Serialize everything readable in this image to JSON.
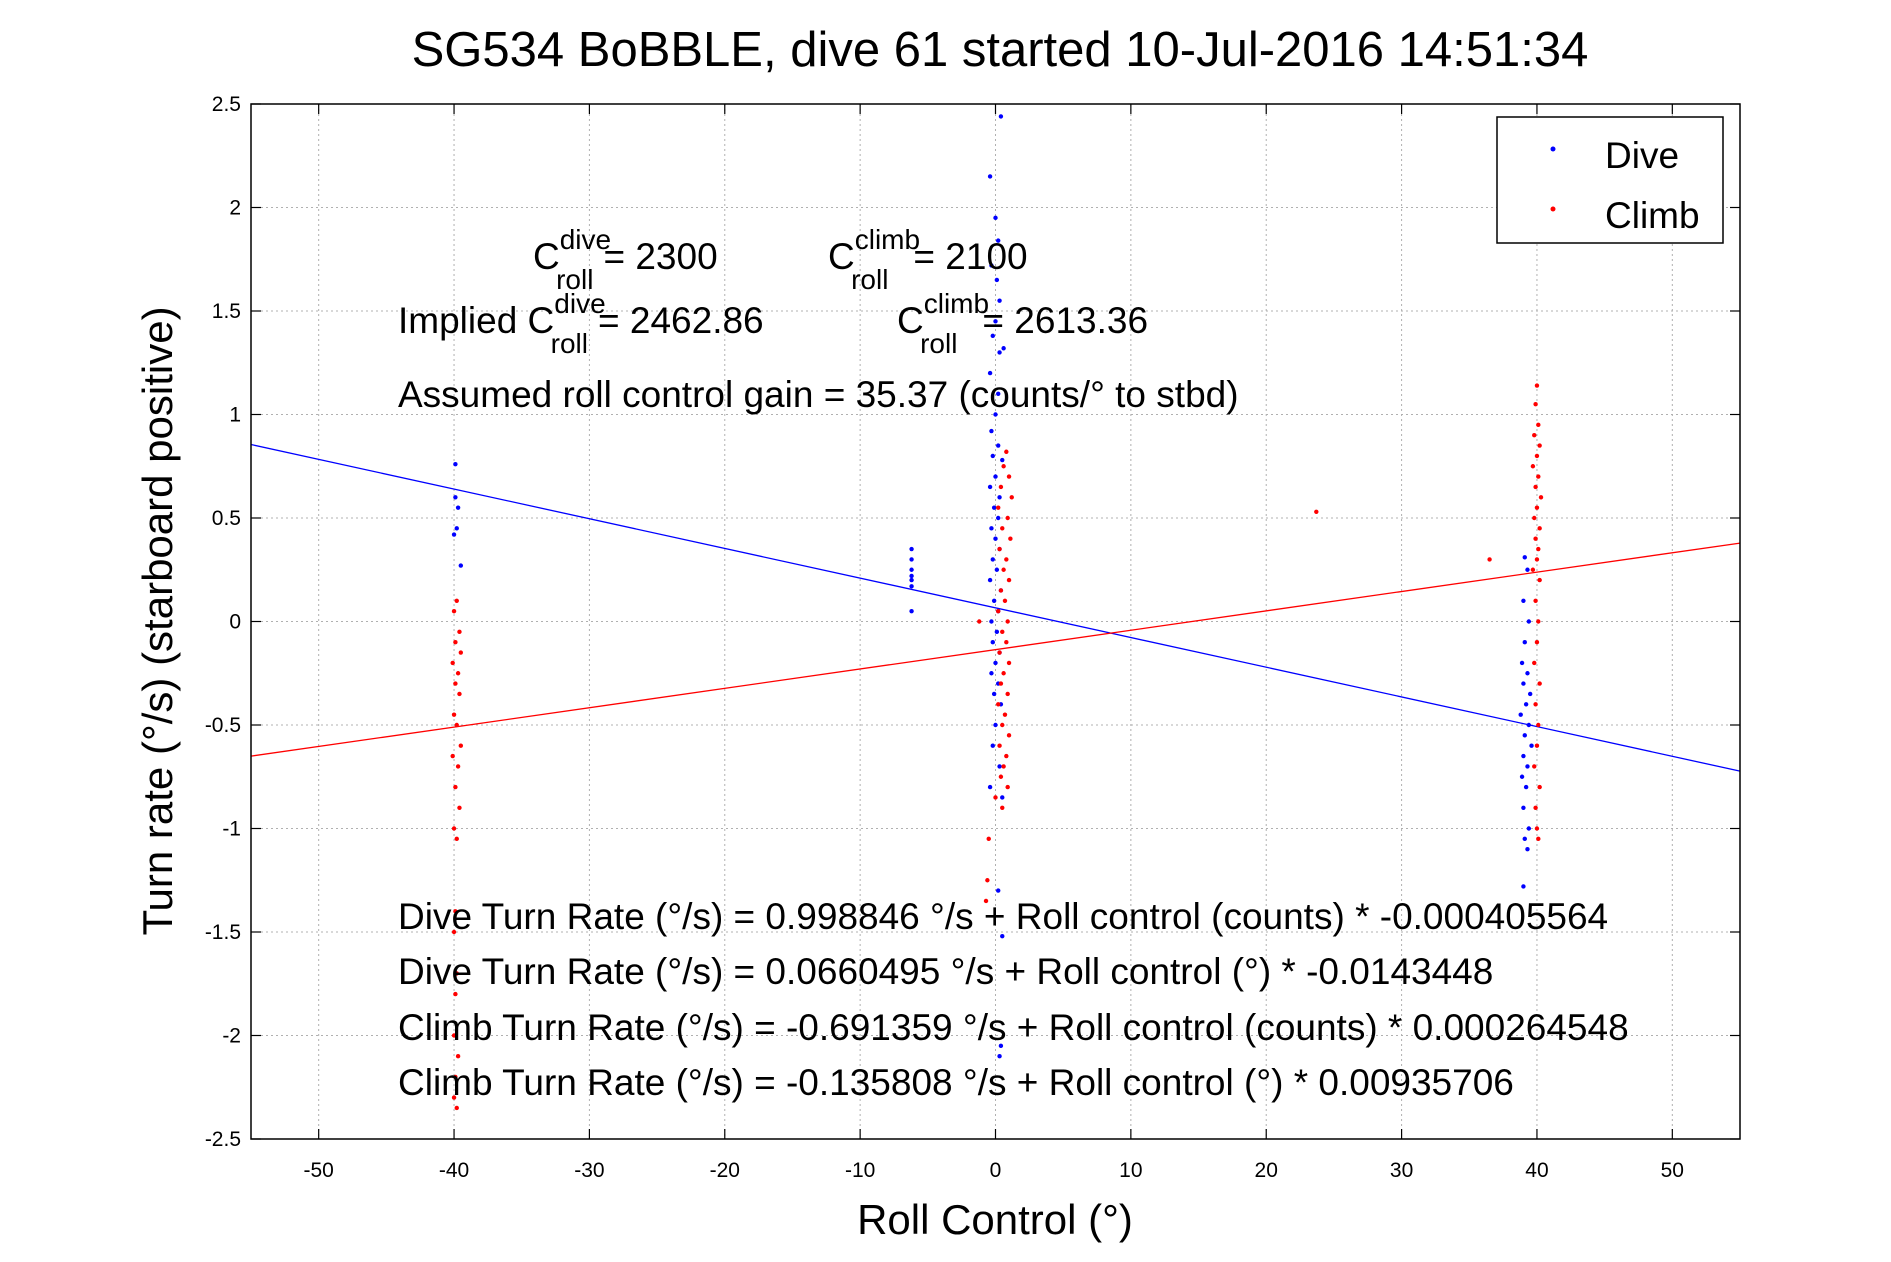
{
  "chart_data": {
    "type": "scatter",
    "title": "SG534 BoBBLE, dive 61 started 10-Jul-2016 14:51:34",
    "xlabel": "Roll Control (°)",
    "ylabel": "Turn rate (°/s) (starboard positive)",
    "xlim": [
      -55,
      55
    ],
    "ylim": [
      -2.5,
      2.5
    ],
    "x_ticks": [
      "-50",
      "-40",
      "-30",
      "-20",
      "-10",
      "0",
      "10",
      "20",
      "30",
      "40",
      "50"
    ],
    "y_ticks": [
      "2.5",
      "2",
      "1.5",
      "1",
      "0.5",
      "0",
      "-0.5",
      "-1",
      "-1.5",
      "-2",
      "-2.5"
    ],
    "grid": true,
    "legend_position": "top-right",
    "series": [
      {
        "name": "Dive",
        "color": "#0000ff",
        "points": [
          [
            -39.9,
            0.76
          ],
          [
            -39.9,
            0.6
          ],
          [
            -39.7,
            0.55
          ],
          [
            -39.8,
            0.45
          ],
          [
            -40.0,
            0.42
          ],
          [
            -39.5,
            0.27
          ],
          [
            -6.2,
            0.35
          ],
          [
            -6.2,
            0.3
          ],
          [
            -6.2,
            0.25
          ],
          [
            -6.2,
            0.22
          ],
          [
            -6.2,
            0.2
          ],
          [
            -6.2,
            0.17
          ],
          [
            -6.2,
            0.05
          ],
          [
            0.4,
            2.44
          ],
          [
            -0.4,
            2.15
          ],
          [
            0.0,
            1.95
          ],
          [
            0.2,
            1.84
          ],
          [
            -0.3,
            1.72
          ],
          [
            0.1,
            1.65
          ],
          [
            0.3,
            1.55
          ],
          [
            0.0,
            1.45
          ],
          [
            -0.2,
            1.38
          ],
          [
            0.3,
            1.3
          ],
          [
            0.6,
            1.32
          ],
          [
            -0.4,
            1.2
          ],
          [
            0.2,
            1.1
          ],
          [
            0.0,
            1.0
          ],
          [
            -0.3,
            0.92
          ],
          [
            0.2,
            0.85
          ],
          [
            -0.2,
            0.8
          ],
          [
            0.5,
            0.78
          ],
          [
            0.0,
            0.7
          ],
          [
            -0.4,
            0.65
          ],
          [
            0.3,
            0.6
          ],
          [
            -0.1,
            0.55
          ],
          [
            0.2,
            0.5
          ],
          [
            -0.3,
            0.45
          ],
          [
            0.0,
            0.4
          ],
          [
            0.3,
            0.35
          ],
          [
            -0.2,
            0.3
          ],
          [
            0.1,
            0.25
          ],
          [
            -0.4,
            0.2
          ],
          [
            0.4,
            0.15
          ],
          [
            -0.1,
            0.1
          ],
          [
            0.2,
            0.05
          ],
          [
            -0.3,
            0.0
          ],
          [
            0.1,
            -0.05
          ],
          [
            -0.2,
            -0.1
          ],
          [
            0.3,
            -0.15
          ],
          [
            0.0,
            -0.2
          ],
          [
            -0.3,
            -0.25
          ],
          [
            0.2,
            -0.3
          ],
          [
            -0.1,
            -0.35
          ],
          [
            0.4,
            -0.4
          ],
          [
            0.0,
            -0.5
          ],
          [
            -0.2,
            -0.6
          ],
          [
            0.3,
            -0.7
          ],
          [
            -0.4,
            -0.8
          ],
          [
            0.5,
            -0.85
          ],
          [
            0.2,
            -1.3
          ],
          [
            0.5,
            -1.52
          ],
          [
            0.4,
            -2.05
          ],
          [
            0.3,
            -2.1
          ],
          [
            39.1,
            0.31
          ],
          [
            39.3,
            0.25
          ],
          [
            39.0,
            0.1
          ],
          [
            39.4,
            0.0
          ],
          [
            39.1,
            -0.1
          ],
          [
            38.9,
            -0.2
          ],
          [
            39.3,
            -0.25
          ],
          [
            39.0,
            -0.3
          ],
          [
            39.5,
            -0.35
          ],
          [
            39.2,
            -0.4
          ],
          [
            38.8,
            -0.45
          ],
          [
            39.4,
            -0.5
          ],
          [
            39.1,
            -0.55
          ],
          [
            39.6,
            -0.6
          ],
          [
            39.0,
            -0.65
          ],
          [
            39.3,
            -0.7
          ],
          [
            38.9,
            -0.75
          ],
          [
            39.2,
            -0.8
          ],
          [
            39.0,
            -0.9
          ],
          [
            39.4,
            -1.0
          ],
          [
            39.1,
            -1.05
          ],
          [
            39.3,
            -1.1
          ],
          [
            39.0,
            -1.28
          ]
        ],
        "fit_line": {
          "intercept": 0.0660495,
          "slope": -0.0143448
        }
      },
      {
        "name": "Climb",
        "color": "#ff0000",
        "points": [
          [
            -39.8,
            0.1
          ],
          [
            -40.0,
            0.05
          ],
          [
            -39.6,
            -0.05
          ],
          [
            -39.9,
            -0.1
          ],
          [
            -39.5,
            -0.15
          ],
          [
            -40.1,
            -0.2
          ],
          [
            -39.7,
            -0.25
          ],
          [
            -39.9,
            -0.3
          ],
          [
            -39.6,
            -0.35
          ],
          [
            -40.0,
            -0.45
          ],
          [
            -39.8,
            -0.5
          ],
          [
            -39.5,
            -0.6
          ],
          [
            -40.1,
            -0.65
          ],
          [
            -39.7,
            -0.7
          ],
          [
            -39.9,
            -0.8
          ],
          [
            -39.6,
            -0.9
          ],
          [
            -40.0,
            -1.0
          ],
          [
            -39.8,
            -1.05
          ],
          [
            -39.9,
            -1.4
          ],
          [
            -40.0,
            -1.5
          ],
          [
            -39.8,
            -1.7
          ],
          [
            -39.9,
            -1.8
          ],
          [
            -40.0,
            -2.0
          ],
          [
            -39.7,
            -2.1
          ],
          [
            -39.9,
            -2.2
          ],
          [
            -40.0,
            -2.3
          ],
          [
            -39.8,
            -2.35
          ],
          [
            -1.2,
            0.0
          ],
          [
            0.8,
            0.82
          ],
          [
            0.6,
            0.75
          ],
          [
            1.0,
            0.7
          ],
          [
            0.4,
            0.65
          ],
          [
            1.2,
            0.6
          ],
          [
            0.2,
            0.55
          ],
          [
            0.9,
            0.5
          ],
          [
            0.5,
            0.45
          ],
          [
            1.1,
            0.4
          ],
          [
            0.3,
            0.35
          ],
          [
            0.8,
            0.3
          ],
          [
            0.6,
            0.25
          ],
          [
            1.0,
            0.2
          ],
          [
            0.4,
            0.15
          ],
          [
            0.7,
            0.1
          ],
          [
            0.2,
            0.05
          ],
          [
            0.9,
            0.0
          ],
          [
            0.5,
            -0.05
          ],
          [
            0.8,
            -0.1
          ],
          [
            0.3,
            -0.15
          ],
          [
            1.0,
            -0.2
          ],
          [
            0.6,
            -0.25
          ],
          [
            0.4,
            -0.3
          ],
          [
            0.9,
            -0.35
          ],
          [
            0.2,
            -0.4
          ],
          [
            0.7,
            -0.45
          ],
          [
            0.5,
            -0.5
          ],
          [
            1.0,
            -0.55
          ],
          [
            0.3,
            -0.6
          ],
          [
            0.8,
            -0.65
          ],
          [
            0.6,
            -0.7
          ],
          [
            0.4,
            -0.75
          ],
          [
            0.9,
            -0.8
          ],
          [
            0.0,
            -0.85
          ],
          [
            0.5,
            -0.9
          ],
          [
            -0.5,
            -1.05
          ],
          [
            -0.6,
            -1.25
          ],
          [
            -0.7,
            -1.35
          ],
          [
            23.7,
            0.53
          ],
          [
            36.5,
            0.3
          ],
          [
            40.0,
            1.14
          ],
          [
            39.9,
            1.05
          ],
          [
            40.1,
            0.95
          ],
          [
            39.8,
            0.9
          ],
          [
            40.2,
            0.85
          ],
          [
            40.0,
            0.8
          ],
          [
            39.7,
            0.75
          ],
          [
            40.1,
            0.7
          ],
          [
            39.9,
            0.65
          ],
          [
            40.3,
            0.6
          ],
          [
            40.0,
            0.55
          ],
          [
            39.8,
            0.5
          ],
          [
            40.2,
            0.45
          ],
          [
            39.9,
            0.4
          ],
          [
            40.1,
            0.35
          ],
          [
            40.0,
            0.3
          ],
          [
            39.7,
            0.25
          ],
          [
            40.2,
            0.2
          ],
          [
            39.9,
            0.1
          ],
          [
            40.1,
            0.0
          ],
          [
            40.0,
            -0.1
          ],
          [
            39.8,
            -0.2
          ],
          [
            40.2,
            -0.3
          ],
          [
            39.9,
            -0.4
          ],
          [
            40.1,
            -0.5
          ],
          [
            40.0,
            -0.6
          ],
          [
            39.8,
            -0.7
          ],
          [
            40.2,
            -0.8
          ],
          [
            39.9,
            -0.9
          ],
          [
            40.0,
            -1.0
          ],
          [
            40.1,
            -1.05
          ]
        ],
        "fit_line": {
          "intercept": -0.135808,
          "slope": 0.00935706
        }
      }
    ],
    "annotations": {
      "c_roll_dive": {
        "symbol": "C",
        "sup": "dive",
        "sub": "roll",
        "value": "= 2300"
      },
      "c_roll_climb": {
        "symbol": "C",
        "sup": "climb",
        "sub": "roll",
        "value": "= 2100"
      },
      "implied_dive": {
        "prefix": "Implied C",
        "sup": "dive",
        "sub": "roll",
        "value": "= 2462.86"
      },
      "implied_climb": {
        "symbol": "C",
        "sup": "climb",
        "sub": "roll",
        "value": "= 2613.36"
      },
      "gain": "Assumed roll control gain = 35.37 (counts/° to stbd)",
      "fits": [
        "Dive Turn Rate (°/s) = 0.998846 °/s + Roll control (counts) * -0.000405564",
        "Dive Turn Rate (°/s) = 0.0660495 °/s + Roll control (°) * -0.0143448",
        "Climb Turn Rate (°/s) = -0.691359 °/s + Roll control (counts) * 0.000264548",
        "Climb Turn Rate (°/s) = -0.135808 °/s + Roll control (°) * 0.00935706"
      ]
    }
  }
}
